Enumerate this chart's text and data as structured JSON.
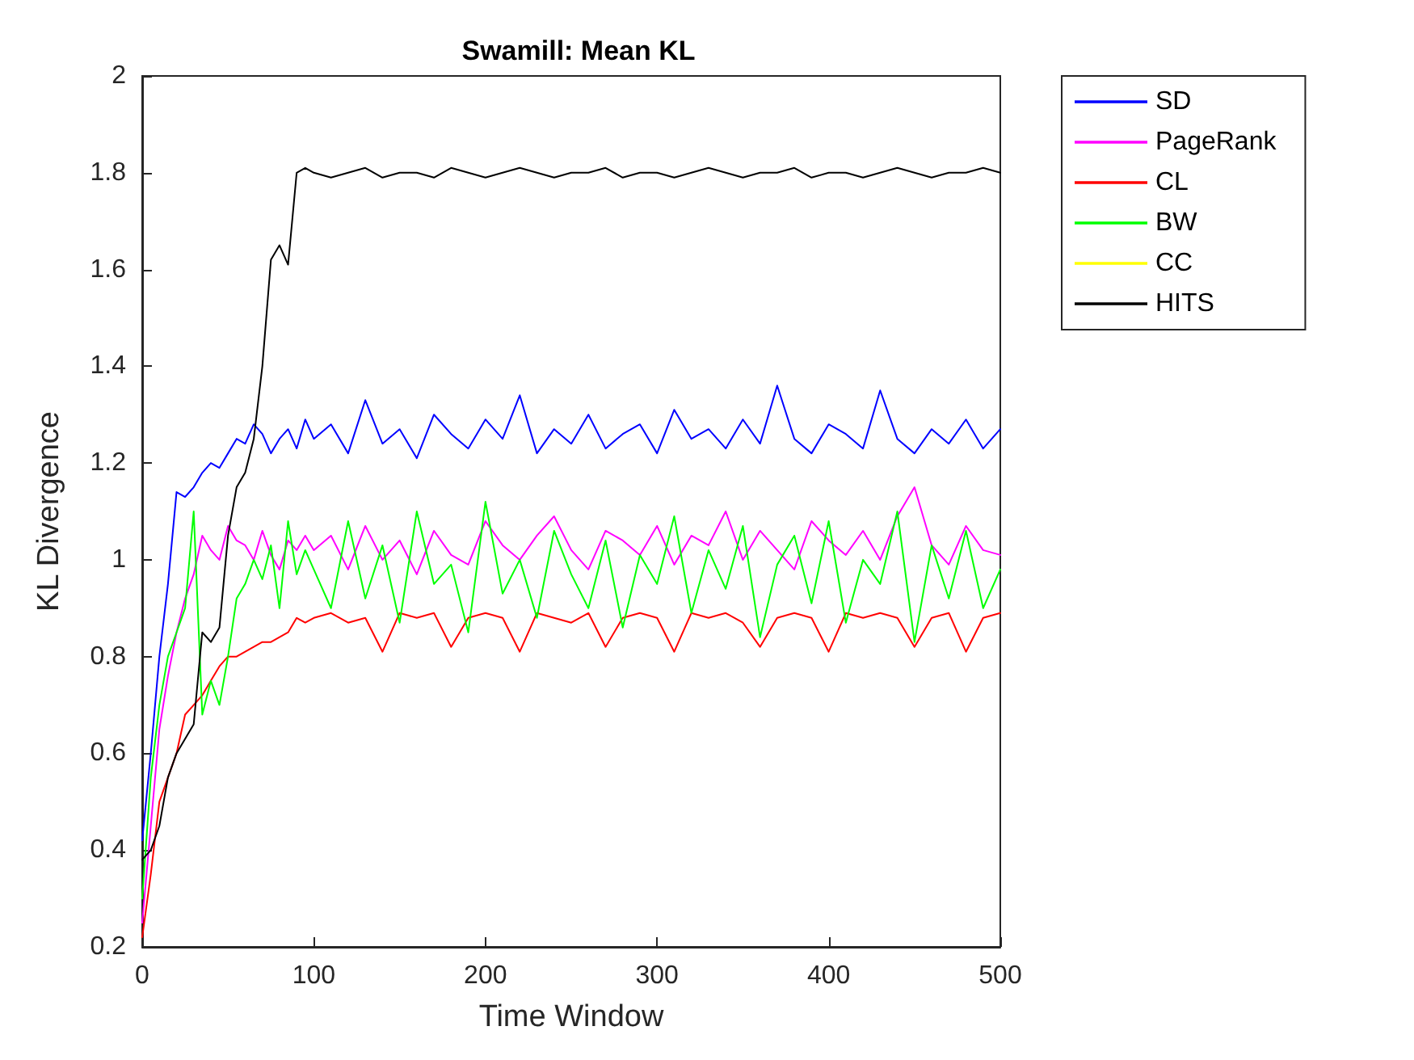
{
  "chart_data": {
    "type": "line",
    "title": "Swamill: Mean KL",
    "xlabel": "Time Window",
    "ylabel": "KL Divergence",
    "x": [
      0,
      5,
      10,
      15,
      20,
      25,
      30,
      35,
      40,
      45,
      50,
      55,
      60,
      65,
      70,
      75,
      80,
      85,
      90,
      95,
      100,
      110,
      120,
      130,
      140,
      150,
      160,
      170,
      180,
      190,
      200,
      210,
      220,
      230,
      240,
      250,
      260,
      270,
      280,
      290,
      300,
      310,
      320,
      330,
      340,
      350,
      360,
      370,
      380,
      390,
      400,
      410,
      420,
      430,
      440,
      450,
      460,
      470,
      480,
      490,
      500
    ],
    "series": [
      {
        "name": "SD",
        "color": "#0000ff",
        "values": [
          0.42,
          0.6,
          0.8,
          0.95,
          1.14,
          1.13,
          1.15,
          1.18,
          1.2,
          1.19,
          1.22,
          1.25,
          1.24,
          1.28,
          1.26,
          1.22,
          1.25,
          1.27,
          1.23,
          1.29,
          1.25,
          1.28,
          1.22,
          1.33,
          1.24,
          1.27,
          1.21,
          1.3,
          1.26,
          1.23,
          1.29,
          1.25,
          1.34,
          1.22,
          1.27,
          1.24,
          1.3,
          1.23,
          1.26,
          1.28,
          1.22,
          1.31,
          1.25,
          1.27,
          1.23,
          1.29,
          1.24,
          1.36,
          1.25,
          1.22,
          1.28,
          1.26,
          1.23,
          1.35,
          1.25,
          1.22,
          1.27,
          1.24,
          1.29,
          1.23,
          1.27
        ]
      },
      {
        "name": "PageRank",
        "color": "#ff00ff",
        "values": [
          0.25,
          0.45,
          0.65,
          0.76,
          0.85,
          0.92,
          0.97,
          1.05,
          1.02,
          1.0,
          1.07,
          1.04,
          1.03,
          1.0,
          1.06,
          1.01,
          0.98,
          1.04,
          1.02,
          1.05,
          1.02,
          1.05,
          0.98,
          1.07,
          1.0,
          1.04,
          0.97,
          1.06,
          1.01,
          0.99,
          1.08,
          1.03,
          1.0,
          1.05,
          1.09,
          1.02,
          0.98,
          1.06,
          1.04,
          1.01,
          1.07,
          0.99,
          1.05,
          1.03,
          1.1,
          1.0,
          1.06,
          1.02,
          0.98,
          1.08,
          1.04,
          1.01,
          1.06,
          1.0,
          1.09,
          1.15,
          1.03,
          0.99,
          1.07,
          1.02,
          1.01
        ]
      },
      {
        "name": "CL",
        "color": "#ff0000",
        "values": [
          0.22,
          0.35,
          0.5,
          0.55,
          0.6,
          0.68,
          0.7,
          0.72,
          0.75,
          0.78,
          0.8,
          0.8,
          0.81,
          0.82,
          0.83,
          0.83,
          0.84,
          0.85,
          0.88,
          0.87,
          0.88,
          0.89,
          0.87,
          0.88,
          0.81,
          0.89,
          0.88,
          0.89,
          0.82,
          0.88,
          0.89,
          0.88,
          0.81,
          0.89,
          0.88,
          0.87,
          0.89,
          0.82,
          0.88,
          0.89,
          0.88,
          0.81,
          0.89,
          0.88,
          0.89,
          0.87,
          0.82,
          0.88,
          0.89,
          0.88,
          0.81,
          0.89,
          0.88,
          0.89,
          0.88,
          0.82,
          0.88,
          0.89,
          0.81,
          0.88,
          0.89
        ]
      },
      {
        "name": "BW",
        "color": "#00ff00",
        "values": [
          0.3,
          0.55,
          0.7,
          0.8,
          0.85,
          0.9,
          1.1,
          0.68,
          0.75,
          0.7,
          0.8,
          0.92,
          0.95,
          1.0,
          0.96,
          1.03,
          0.9,
          1.08,
          0.97,
          1.02,
          0.98,
          0.9,
          1.08,
          0.92,
          1.03,
          0.87,
          1.1,
          0.95,
          0.99,
          0.85,
          1.12,
          0.93,
          1.0,
          0.88,
          1.06,
          0.97,
          0.9,
          1.04,
          0.86,
          1.01,
          0.95,
          1.09,
          0.89,
          1.02,
          0.94,
          1.07,
          0.84,
          0.99,
          1.05,
          0.91,
          1.08,
          0.87,
          1.0,
          0.95,
          1.1,
          0.83,
          1.03,
          0.92,
          1.06,
          0.9,
          0.98
        ]
      },
      {
        "name": "CC",
        "color": "#ffff00",
        "values": [
          null,
          null,
          null,
          null,
          null,
          null,
          null,
          null,
          null,
          null,
          null,
          null,
          null,
          null,
          null,
          null,
          null,
          null,
          null,
          null,
          null,
          null,
          null,
          null,
          null,
          null,
          null,
          null,
          null,
          null,
          null,
          null,
          null,
          null,
          null,
          null,
          null,
          null,
          null,
          null,
          null,
          null,
          null,
          null,
          null,
          null,
          null,
          null,
          null,
          null,
          null,
          null,
          null,
          null,
          null,
          null,
          null,
          null,
          null,
          null,
          null
        ]
      },
      {
        "name": "HITS",
        "color": "#000000",
        "values": [
          0.38,
          0.4,
          0.45,
          0.55,
          0.6,
          0.63,
          0.66,
          0.85,
          0.83,
          0.86,
          1.05,
          1.15,
          1.18,
          1.25,
          1.4,
          1.62,
          1.65,
          1.61,
          1.8,
          1.81,
          1.8,
          1.79,
          1.8,
          1.81,
          1.79,
          1.8,
          1.8,
          1.79,
          1.81,
          1.8,
          1.79,
          1.8,
          1.81,
          1.8,
          1.79,
          1.8,
          1.8,
          1.81,
          1.79,
          1.8,
          1.8,
          1.79,
          1.8,
          1.81,
          1.8,
          1.79,
          1.8,
          1.8,
          1.81,
          1.79,
          1.8,
          1.8,
          1.79,
          1.8,
          1.81,
          1.8,
          1.79,
          1.8,
          1.8,
          1.81,
          1.8
        ]
      }
    ],
    "xlim": [
      0,
      500
    ],
    "xticks": [
      0,
      100,
      200,
      300,
      400,
      500
    ],
    "ylim": [
      0.2,
      2
    ],
    "yticks": [
      0.2,
      0.4,
      0.6,
      0.8,
      1,
      1.2,
      1.4,
      1.6,
      1.8,
      2
    ],
    "grid": false,
    "legend": "top right",
    "marker": "none",
    "line_style": "solid"
  }
}
